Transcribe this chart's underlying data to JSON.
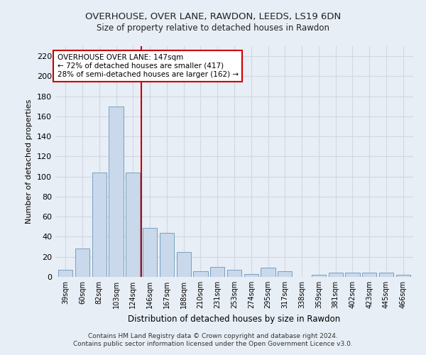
{
  "title": "OVERHOUSE, OVER LANE, RAWDON, LEEDS, LS19 6DN",
  "subtitle": "Size of property relative to detached houses in Rawdon",
  "xlabel": "Distribution of detached houses by size in Rawdon",
  "ylabel": "Number of detached properties",
  "categories": [
    "39sqm",
    "60sqm",
    "82sqm",
    "103sqm",
    "124sqm",
    "146sqm",
    "167sqm",
    "188sqm",
    "210sqm",
    "231sqm",
    "253sqm",
    "274sqm",
    "295sqm",
    "317sqm",
    "338sqm",
    "359sqm",
    "381sqm",
    "402sqm",
    "423sqm",
    "445sqm",
    "466sqm"
  ],
  "values": [
    7,
    28,
    104,
    170,
    104,
    49,
    44,
    25,
    6,
    10,
    7,
    3,
    9,
    6,
    0,
    2,
    4,
    4,
    4,
    4,
    2
  ],
  "bar_color": "#c9d9eb",
  "bar_edge_color": "#7a9fc0",
  "vline_x": 4.5,
  "vline_color": "#cc0000",
  "annotation_text": "OVERHOUSE OVER LANE: 147sqm\n← 72% of detached houses are smaller (417)\n28% of semi-detached houses are larger (162) →",
  "annotation_box_color": "#ffffff",
  "annotation_box_edge_color": "#cc0000",
  "ylim": [
    0,
    230
  ],
  "yticks": [
    0,
    20,
    40,
    60,
    80,
    100,
    120,
    140,
    160,
    180,
    200,
    220
  ],
  "footer1": "Contains HM Land Registry data © Crown copyright and database right 2024.",
  "footer2": "Contains public sector information licensed under the Open Government Licence v3.0.",
  "bg_color": "#e8eef5",
  "grid_color": "#d0d8e4",
  "title_fontsize": 9.5,
  "subtitle_fontsize": 8.5
}
